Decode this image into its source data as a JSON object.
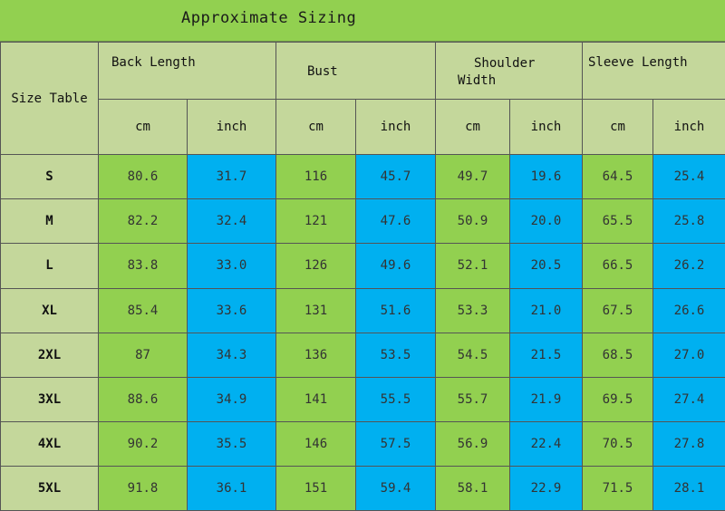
{
  "title": "Approximate Sizing",
  "header": {
    "size_table_label": "Size Table",
    "groups": [
      "Back Length",
      "Bust",
      "Shoulder Width",
      "Sleeve Length"
    ],
    "shoulder_line1": "Shoulder",
    "shoulder_line2": "Width",
    "unit_cm": "cm",
    "unit_inch": "inch"
  },
  "rows": [
    {
      "size": "S",
      "values": [
        "80.6",
        "31.7",
        "116",
        "45.7",
        "49.7",
        "19.6",
        "64.5",
        "25.4"
      ]
    },
    {
      "size": "M",
      "values": [
        "82.2",
        "32.4",
        "121",
        "47.6",
        "50.9",
        "20.0",
        "65.5",
        "25.8"
      ]
    },
    {
      "size": "L",
      "values": [
        "83.8",
        "33.0",
        "126",
        "49.6",
        "52.1",
        "20.5",
        "66.5",
        "26.2"
      ]
    },
    {
      "size": "XL",
      "values": [
        "85.4",
        "33.6",
        "131",
        "51.6",
        "53.3",
        "21.0",
        "67.5",
        "26.6"
      ]
    },
    {
      "size": "2XL",
      "values": [
        "87",
        "34.3",
        "136",
        "53.5",
        "54.5",
        "21.5",
        "68.5",
        "27.0"
      ]
    },
    {
      "size": "3XL",
      "values": [
        "88.6",
        "34.9",
        "141",
        "55.5",
        "55.7",
        "21.9",
        "69.5",
        "27.4"
      ]
    },
    {
      "size": "4XL",
      "values": [
        "90.2",
        "35.5",
        "146",
        "57.5",
        "56.9",
        "22.4",
        "70.5",
        "27.8"
      ]
    },
    {
      "size": "5XL",
      "values": [
        "91.8",
        "36.1",
        "151",
        "59.4",
        "58.1",
        "22.9",
        "71.5",
        "28.1"
      ]
    }
  ],
  "colors": {
    "title_green": "#92d050",
    "header_olive": "#c4d79b",
    "cm_green": "#92d050",
    "inch_blue": "#00b0f0"
  }
}
